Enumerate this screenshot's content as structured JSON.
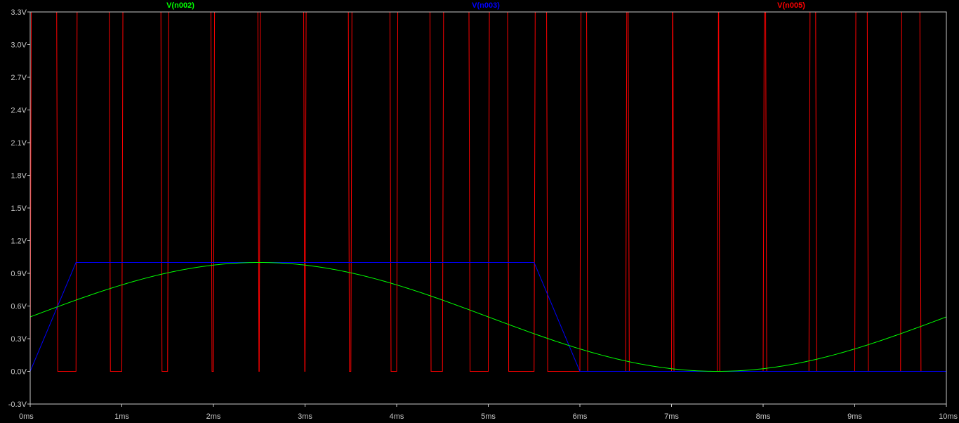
{
  "chart_data": {
    "type": "line",
    "xlim": [
      0,
      10
    ],
    "ylim": [
      -0.3,
      3.3
    ],
    "x_unit": "ms",
    "y_unit": "V",
    "x_ticks": [
      "0ms",
      "1ms",
      "2ms",
      "3ms",
      "4ms",
      "5ms",
      "6ms",
      "7ms",
      "8ms",
      "9ms",
      "10ms"
    ],
    "y_ticks": [
      "-0.3V",
      "0.0V",
      "0.3V",
      "0.6V",
      "0.9V",
      "1.2V",
      "1.5V",
      "1.8V",
      "2.1V",
      "2.4V",
      "2.7V",
      "3.0V",
      "3.3V"
    ],
    "grid": false,
    "series": [
      {
        "name": "V(n002)",
        "color": "#00ff00",
        "kind": "sine",
        "offset_v": 0.5,
        "amplitude_v": 0.5,
        "period_ms": 10,
        "x": [
          0,
          0.5,
          1,
          1.5,
          2,
          2.5,
          3,
          3.5,
          4,
          4.5,
          5,
          5.5,
          6,
          6.5,
          7,
          7.5,
          8,
          8.5,
          9,
          9.5,
          10
        ],
        "y": [
          0.5,
          0.655,
          0.794,
          0.905,
          0.976,
          1.0,
          0.976,
          0.905,
          0.794,
          0.655,
          0.5,
          0.345,
          0.206,
          0.095,
          0.024,
          0.0,
          0.024,
          0.095,
          0.206,
          0.345,
          0.5
        ]
      },
      {
        "name": "V(n003)",
        "color": "#0000ff",
        "kind": "trapezoid",
        "x": [
          0,
          0.5,
          5.5,
          6.0,
          10
        ],
        "y": [
          0,
          1.0,
          1.0,
          0,
          0
        ]
      },
      {
        "name": "V(n005)",
        "color": "#ff0000",
        "kind": "pwm",
        "high_v": 3.3,
        "low_v": 0.0,
        "period_ms": 0.5,
        "description_note_free": true
      }
    ]
  }
}
